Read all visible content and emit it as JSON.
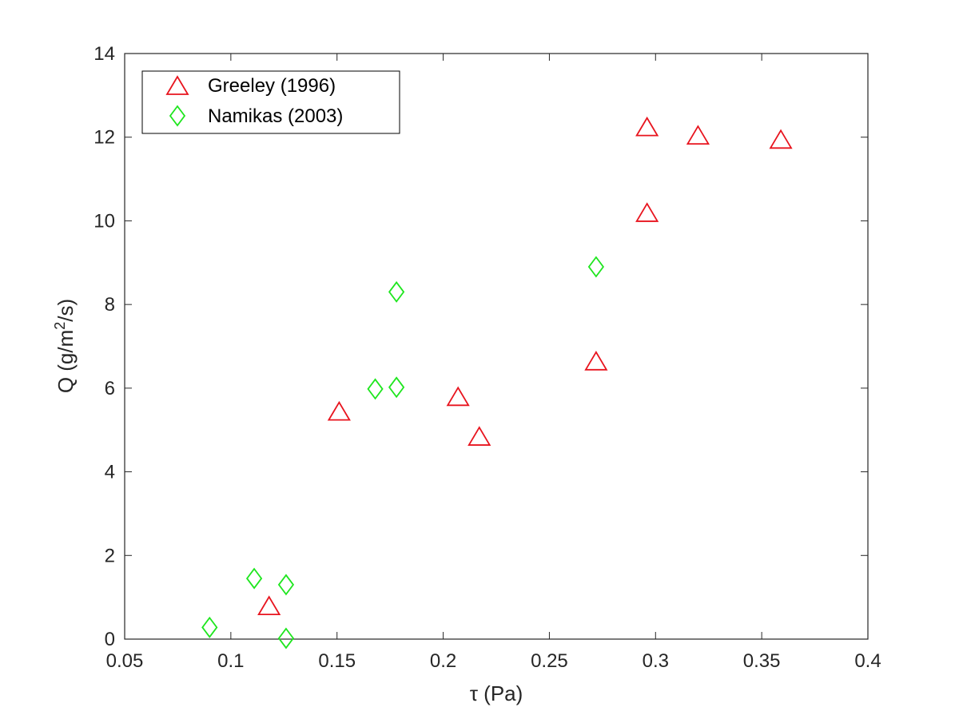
{
  "chart_data": {
    "type": "scatter",
    "title": "",
    "xlabel": "τ (Pa)",
    "ylabel_main": "Q (g/m",
    "ylabel_sup": "2",
    "ylabel_tail": "/s)",
    "xlim": [
      0.05,
      0.4
    ],
    "ylim": [
      0,
      14
    ],
    "xticks": [
      0.05,
      0.1,
      0.15,
      0.2,
      0.25,
      0.3,
      0.35,
      0.4
    ],
    "xtick_labels": [
      "0.05",
      "0.1",
      "0.15",
      "0.2",
      "0.25",
      "0.3",
      "0.35",
      "0.4"
    ],
    "yticks": [
      0,
      2,
      4,
      6,
      8,
      10,
      12,
      14
    ],
    "ytick_labels": [
      "0",
      "2",
      "4",
      "6",
      "8",
      "10",
      "12",
      "14"
    ],
    "grid": false,
    "legend_position": "top-left",
    "series": [
      {
        "name": "Greeley (1996)",
        "marker": "triangle",
        "color": "#e8141e",
        "points": [
          {
            "x": 0.118,
            "y": 0.8
          },
          {
            "x": 0.151,
            "y": 5.45
          },
          {
            "x": 0.207,
            "y": 5.8
          },
          {
            "x": 0.217,
            "y": 4.85
          },
          {
            "x": 0.272,
            "y": 6.65
          },
          {
            "x": 0.296,
            "y": 10.2
          },
          {
            "x": 0.296,
            "y": 12.25
          },
          {
            "x": 0.32,
            "y": 12.05
          },
          {
            "x": 0.359,
            "y": 11.95
          }
        ]
      },
      {
        "name": "Namikas (2003)",
        "marker": "diamond",
        "color": "#1ee61e",
        "points": [
          {
            "x": 0.09,
            "y": 0.28
          },
          {
            "x": 0.111,
            "y": 1.45
          },
          {
            "x": 0.126,
            "y": 1.3
          },
          {
            "x": 0.126,
            "y": 0.02
          },
          {
            "x": 0.168,
            "y": 5.98
          },
          {
            "x": 0.178,
            "y": 6.02
          },
          {
            "x": 0.178,
            "y": 8.3
          },
          {
            "x": 0.272,
            "y": 8.9
          }
        ]
      }
    ]
  }
}
